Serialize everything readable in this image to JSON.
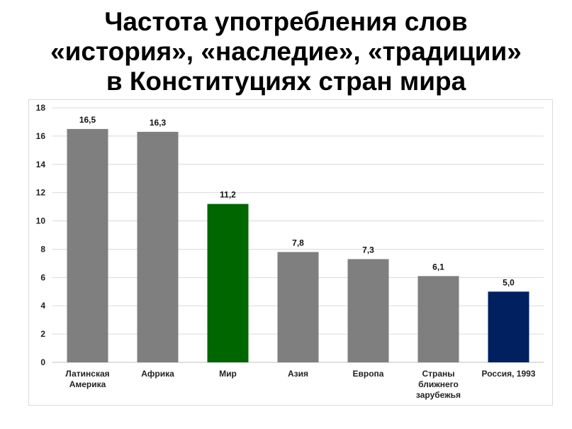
{
  "chart_data": {
    "type": "bar",
    "title_lines": [
      "Частота употребления слов",
      "«история», «наследие», «традиции»",
      "в Конституциях стран мира"
    ],
    "categories": [
      [
        "Латинская",
        "Америка"
      ],
      [
        "Африка"
      ],
      [
        "Мир"
      ],
      [
        "Азия"
      ],
      [
        "Европа"
      ],
      [
        "Страны",
        "ближнего",
        "зарубежья"
      ],
      [
        "Россия, 1993"
      ]
    ],
    "values": [
      16.5,
      16.3,
      11.2,
      7.8,
      7.3,
      6.1,
      5.0
    ],
    "value_labels": [
      "16,5",
      "16,3",
      "11,2",
      "7,8",
      "7,3",
      "6,1",
      "5,0"
    ],
    "bar_colors": [
      "#7f7f7f",
      "#7f7f7f",
      "#006600",
      "#7f7f7f",
      "#7f7f7f",
      "#7f7f7f",
      "#002060"
    ],
    "yticks": [
      0,
      2,
      4,
      6,
      8,
      10,
      12,
      14,
      16,
      18
    ],
    "ylim": [
      0,
      18
    ],
    "grid": true,
    "legend": "none",
    "xlabel": "",
    "ylabel": ""
  },
  "colors": {
    "gridline": "#d9d9d9",
    "axis": "#bfbfbf"
  }
}
